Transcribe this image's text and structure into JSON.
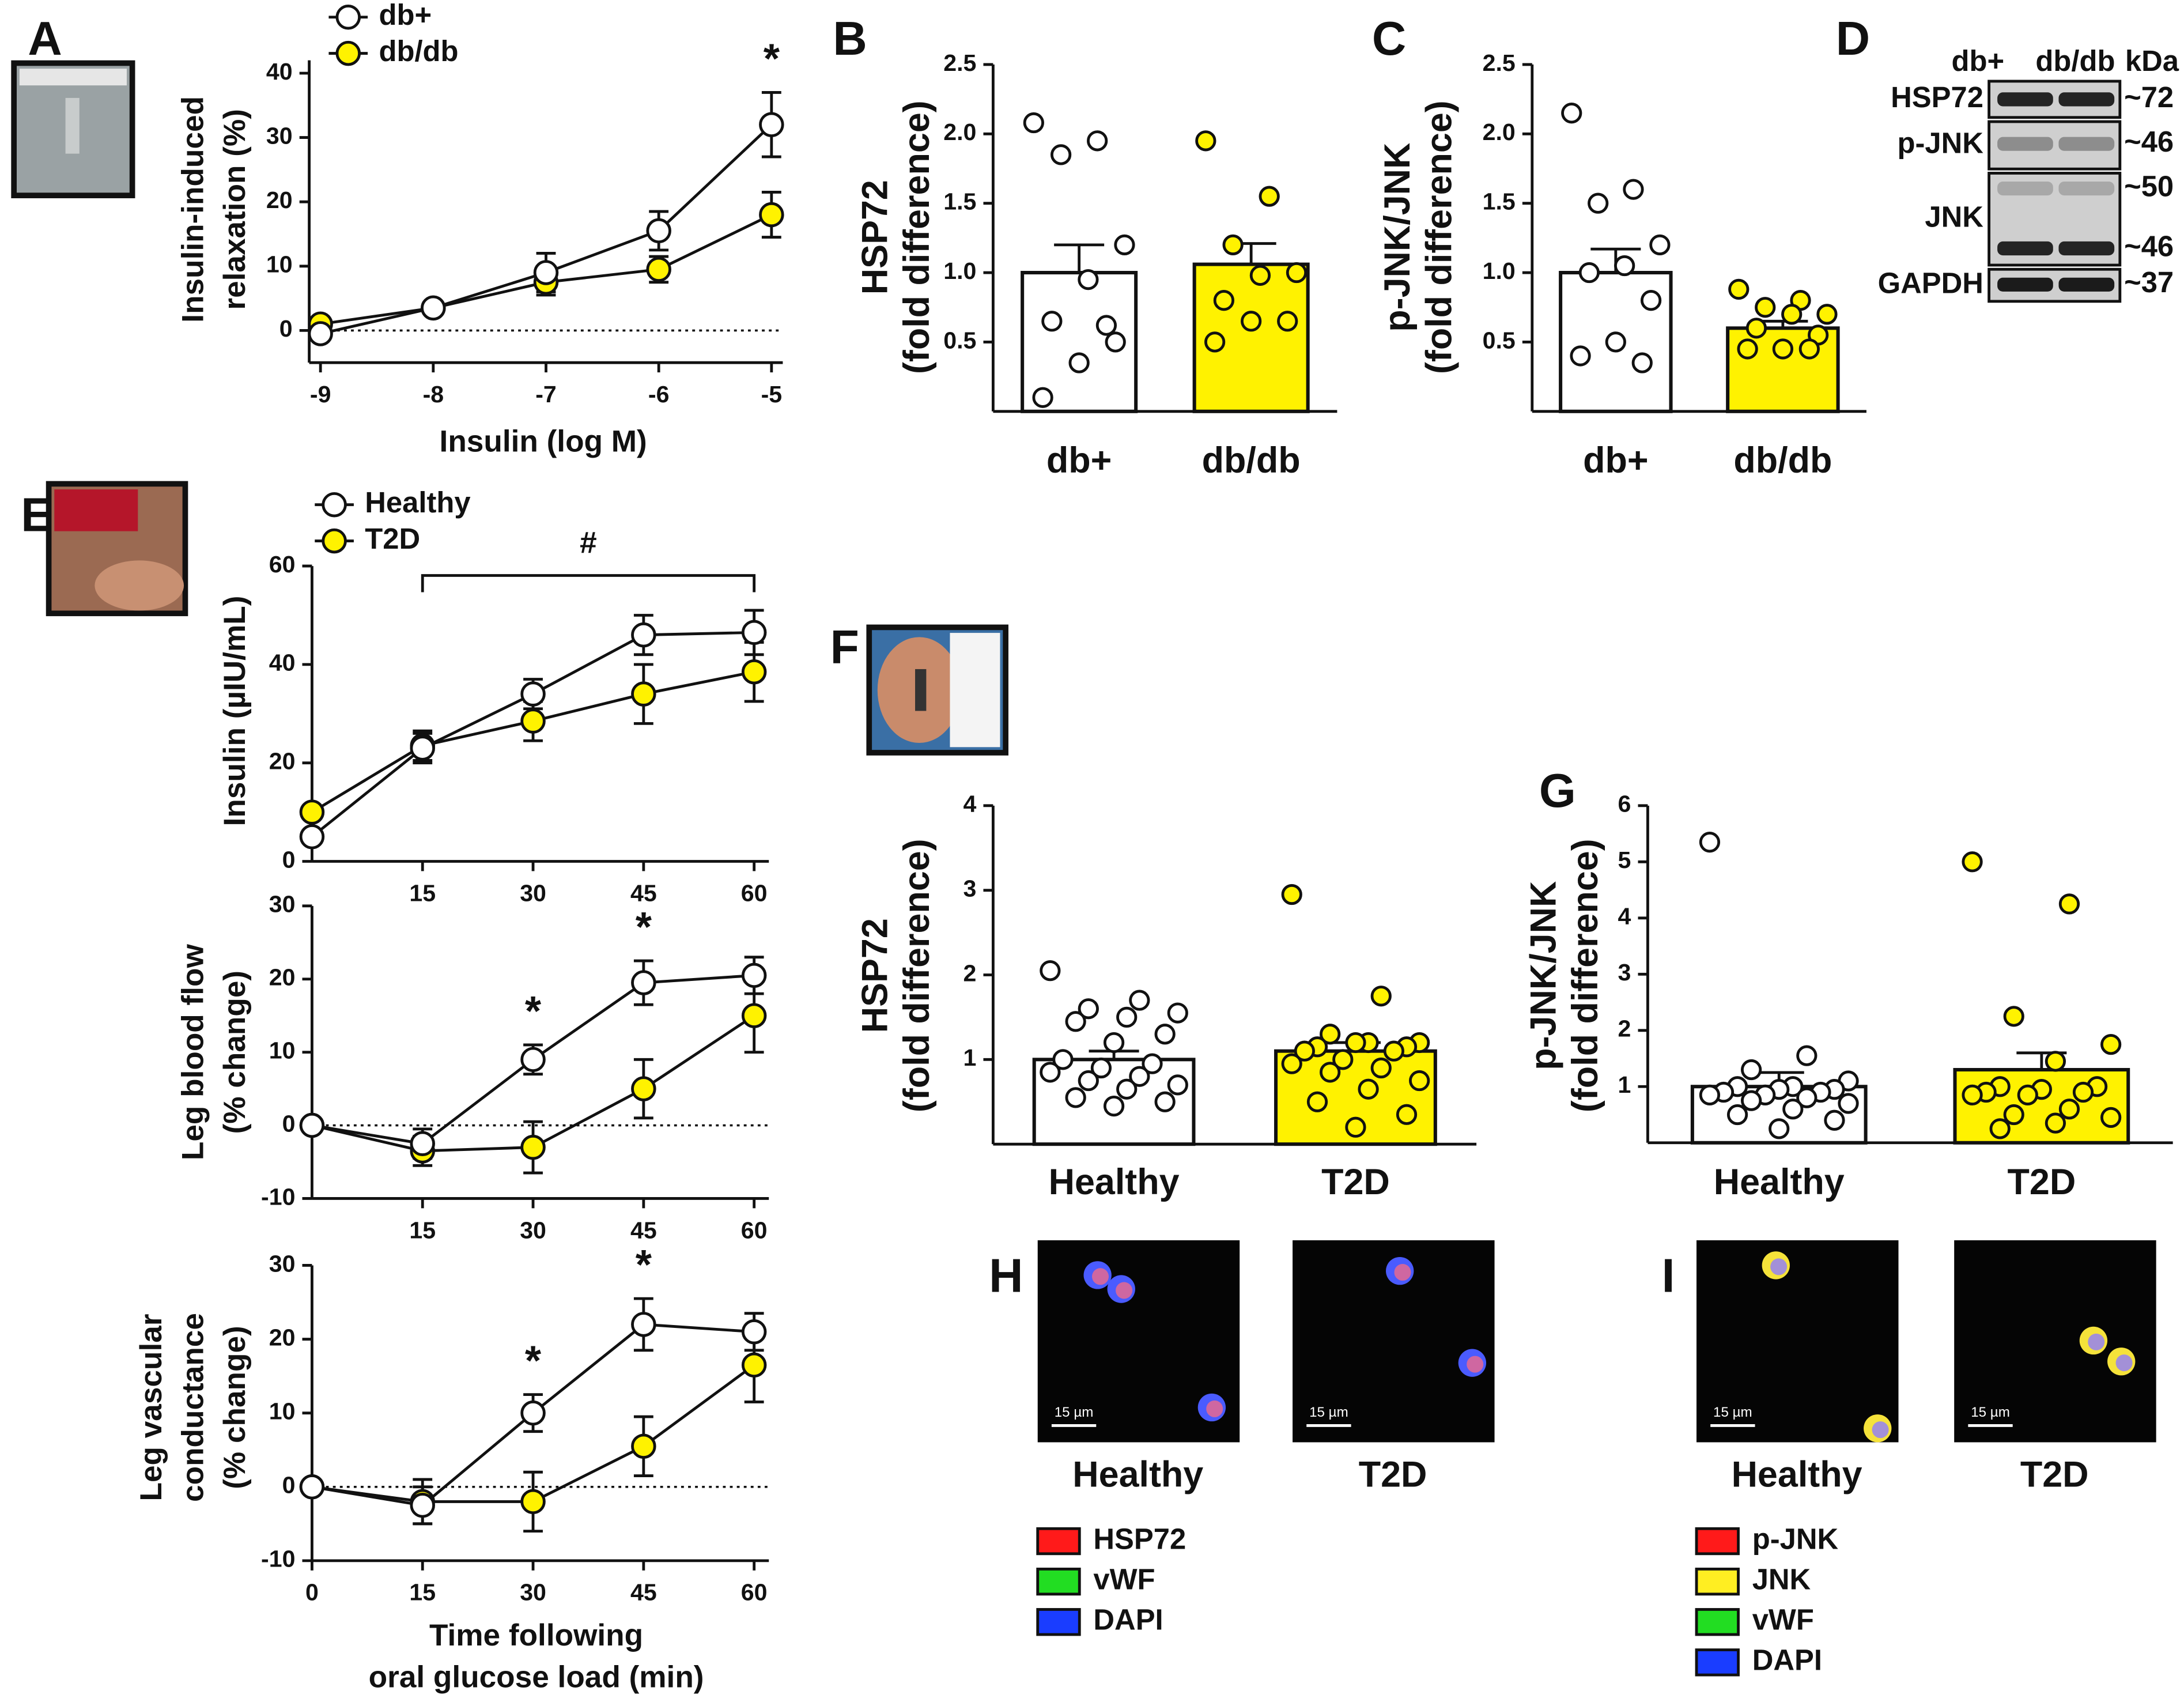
{
  "chart_data": [
    {
      "type": "line",
      "label": "A",
      "x": [
        -9,
        -8,
        -7,
        -6,
        -5
      ],
      "xlim": [
        -9.1,
        -4.9
      ],
      "xticks": [
        -9,
        -8,
        -7,
        -6,
        -5
      ],
      "ylim": [
        -5,
        42
      ],
      "yticks": [
        0,
        10,
        20,
        30,
        40
      ],
      "xlabel": [
        "Insulin (log M)"
      ],
      "ylabel": [
        "Insulin-induced",
        "relaxation (%)"
      ],
      "zero_line": true,
      "legend": true,
      "series": [
        {
          "name": "db+",
          "color": "#ffffff",
          "values": [
            -0.5,
            3.5,
            9,
            15.5,
            32
          ],
          "errors": [
            0,
            0,
            3,
            3,
            5
          ]
        },
        {
          "name": "db/db",
          "color": "#fff200",
          "values": [
            1,
            3.5,
            7.5,
            9.5,
            18
          ],
          "errors": [
            0,
            0,
            2,
            2,
            3.5
          ]
        }
      ],
      "annotations": [
        {
          "text": "*",
          "x": -5
        }
      ]
    },
    {
      "type": "bar",
      "label": "B",
      "categories": [
        "db+",
        "db/db"
      ],
      "colors": [
        "#ffffff",
        "#fff200"
      ],
      "values": [
        1.0,
        1.06
      ],
      "errors": [
        0.2,
        0.15
      ],
      "points": [
        [
          2.08,
          1.95,
          1.85,
          1.2,
          0.95,
          0.65,
          0.5,
          0.35,
          0.1,
          0.62
        ],
        [
          1.95,
          1.55,
          1.2,
          1.0,
          0.98,
          0.8,
          0.65,
          0.65,
          0.5
        ]
      ],
      "ylim": [
        0,
        2.5
      ],
      "yticks": [
        0.5,
        {
          "value": 1,
          "label": "1.0"
        },
        1.5,
        {
          "value": 2,
          "label": "2.0"
        },
        2.5
      ],
      "ylabel": [
        "HSP72",
        "(fold difference)"
      ]
    },
    {
      "type": "bar",
      "label": "C",
      "categories": [
        "db+",
        "db/db"
      ],
      "colors": [
        "#ffffff",
        "#fff200"
      ],
      "values": [
        1.0,
        0.6
      ],
      "errors": [
        0.17,
        0.05
      ],
      "points": [
        [
          2.15,
          1.6,
          1.5,
          1.2,
          1.05,
          1.0,
          0.8,
          0.5,
          0.4,
          0.35
        ],
        [
          0.88,
          0.8,
          0.75,
          0.7,
          0.7,
          0.6,
          0.55,
          0.45,
          0.45,
          0.45
        ]
      ],
      "ylim": [
        0,
        2.5
      ],
      "yticks": [
        0.5,
        {
          "value": 1,
          "label": "1.0"
        },
        1.5,
        {
          "value": 2,
          "label": "2.0"
        },
        2.5
      ],
      "ylabel": [
        "p-JNK/JNK",
        "(fold difference)"
      ]
    },
    {
      "type": "line",
      "label": "E",
      "x": [
        0,
        15,
        30,
        45,
        60
      ],
      "xlim": [
        0,
        62
      ],
      "xticks": [
        15,
        30,
        45,
        60
      ],
      "ylim": [
        0,
        60
      ],
      "yticks": [
        0,
        20,
        40,
        60
      ],
      "ylabel": [
        "Insulin (µIU/mL)"
      ],
      "legend": true,
      "series": [
        {
          "name": "Healthy",
          "color": "#ffffff",
          "values": [
            5,
            23,
            34,
            46,
            46.5
          ],
          "errors": [
            0,
            3,
            3,
            4,
            4.5
          ]
        },
        {
          "name": "T2D",
          "color": "#fff200",
          "values": [
            10,
            23.5,
            28.5,
            34,
            38.5
          ],
          "errors": [
            0,
            3,
            4,
            6,
            6
          ]
        }
      ],
      "annotations": [
        {
          "text": "#",
          "x": [
            15,
            60
          ]
        }
      ]
    },
    {
      "type": "line",
      "x": [
        0,
        15,
        30,
        45,
        60
      ],
      "xlim": [
        0,
        62
      ],
      "xticks": [
        15,
        30,
        45,
        60
      ],
      "ylim": [
        -10,
        30
      ],
      "yticks": [
        -10,
        0,
        10,
        20,
        30
      ],
      "ylabel": [
        "Leg blood flow",
        "(% change)"
      ],
      "zero_line": true,
      "series": [
        {
          "color": "#ffffff",
          "values": [
            0,
            -2.5,
            9,
            19.5,
            20.5
          ],
          "errors": [
            0,
            2,
            2,
            3,
            2.5
          ]
        },
        {
          "color": "#fff200",
          "values": [
            0,
            -3.5,
            -3,
            5,
            15
          ],
          "errors": [
            0,
            2,
            3.5,
            4,
            5
          ]
        }
      ],
      "annotations": [
        {
          "text": "*",
          "x": 30
        },
        {
          "text": "*",
          "x": 45
        }
      ]
    },
    {
      "type": "line",
      "x": [
        0,
        15,
        30,
        45,
        60
      ],
      "xlim": [
        0,
        62
      ],
      "xticks": [
        0,
        15,
        30,
        45,
        60
      ],
      "ylim": [
        -10,
        30
      ],
      "yticks": [
        -10,
        0,
        10,
        20,
        30
      ],
      "xlabel": [
        "Time following",
        "oral glucose load (min)"
      ],
      "ylabel": [
        "Leg vascular",
        "conductance",
        "(% change)"
      ],
      "zero_line": true,
      "series": [
        {
          "color": "#ffffff",
          "values": [
            0,
            -2.5,
            10,
            22,
            21
          ],
          "errors": [
            0,
            2.5,
            2.5,
            3.5,
            2.5
          ]
        },
        {
          "color": "#fff200",
          "values": [
            0,
            -2,
            -2,
            5.5,
            16.5
          ],
          "errors": [
            0,
            3,
            4,
            4,
            5
          ]
        }
      ],
      "annotations": [
        {
          "text": "*",
          "x": 30
        },
        {
          "text": "*",
          "x": 45
        }
      ]
    },
    {
      "type": "bar",
      "label": "F",
      "categories": [
        "Healthy",
        "T2D"
      ],
      "colors": [
        "#ffffff",
        "#fff200"
      ],
      "values": [
        1.0,
        1.1
      ],
      "errors": [
        0.1,
        0.1
      ],
      "points": [
        [
          2.05,
          1.7,
          1.6,
          1.55,
          1.5,
          1.45,
          1.3,
          1.2,
          1.0,
          0.95,
          0.9,
          0.85,
          0.8,
          0.75,
          0.7,
          0.65,
          0.55,
          0.5,
          0.45
        ],
        [
          2.95,
          1.75,
          1.3,
          1.2,
          1.2,
          1.15,
          1.15,
          1.2,
          1.1,
          1.1,
          1.0,
          0.95,
          0.9,
          0.85,
          0.75,
          0.65,
          0.5,
          0.35,
          0.2
        ]
      ],
      "ylim": [
        0,
        4
      ],
      "yticks": [
        1,
        2,
        3,
        4
      ],
      "ylabel": [
        "HSP72",
        "(fold difference)"
      ]
    },
    {
      "type": "bar",
      "label": "G",
      "categories": [
        "Healthy",
        "T2D"
      ],
      "colors": [
        "#ffffff",
        "#fff200"
      ],
      "values": [
        1.0,
        1.3
      ],
      "errors": [
        0.25,
        0.3
      ],
      "points": [
        [
          5.35,
          1.55,
          1.3,
          1.1,
          1.0,
          1.0,
          0.95,
          0.95,
          0.9,
          0.9,
          0.85,
          0.85,
          0.8,
          0.75,
          0.7,
          0.6,
          0.5,
          0.4,
          0.25
        ],
        [
          5.0,
          4.25,
          2.25,
          1.75,
          1.45,
          1.0,
          1.0,
          0.95,
          0.9,
          0.9,
          0.85,
          0.85,
          0.6,
          0.5,
          0.45,
          0.35,
          0.25
        ]
      ],
      "ylim": [
        0,
        6
      ],
      "yticks": [
        1,
        2,
        3,
        4,
        5,
        6
      ],
      "ylabel": [
        "p-JNK/JNK",
        "(fold difference)"
      ]
    }
  ],
  "blot": {
    "label": "D",
    "lanes": [
      "db+",
      "db/db"
    ],
    "unit": "kDa",
    "rows": [
      {
        "name": "HSP72",
        "sizes": [
          "~72"
        ]
      },
      {
        "name": "p-JNK",
        "sizes": [
          "~46"
        ]
      },
      {
        "name": "JNK",
        "sizes": [
          "~50",
          "~46"
        ]
      },
      {
        "name": "GAPDH",
        "sizes": [
          "~37"
        ]
      }
    ]
  },
  "images": [
    {
      "label": "H",
      "conditions": [
        "Healthy",
        "T2D"
      ],
      "scale": "15 µm",
      "legend": [
        "HSP72",
        "vWF",
        "DAPI"
      ],
      "legend_colors": [
        "#ff1a1a",
        "#22dd22",
        "#1a3dff"
      ]
    },
    {
      "label": "I",
      "conditions": [
        "Healthy",
        "T2D"
      ],
      "scale": "15 µm",
      "legend": [
        "p-JNK",
        "JNK",
        "vWF",
        "DAPI"
      ],
      "legend_colors": [
        "#ff1a1a",
        "#ffee22",
        "#22dd22",
        "#1a3dff"
      ]
    }
  ]
}
